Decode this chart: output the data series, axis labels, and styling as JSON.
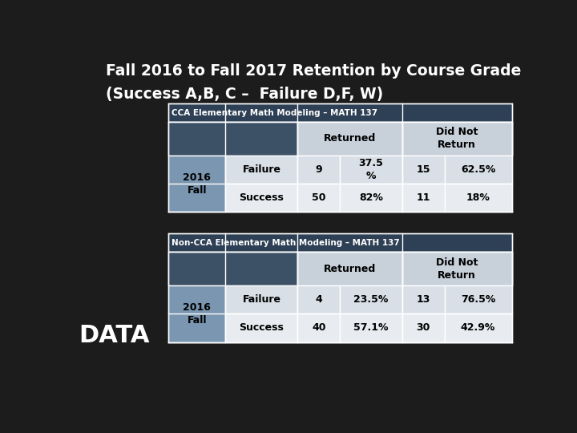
{
  "title_line1": "Fall 2016 to Fall 2017 Retention by Course Grade",
  "title_line2": "(Success A,B, C –  Failure D,F, W)",
  "bg_color": "#1c1c1c",
  "title_color": "#ffffff",
  "data_label": "DATA",
  "table1_title": "CCA Elementary Math Modeling – MATH 137",
  "table2_title": "Non-CCA Elementary Math Modeling – MATH 137",
  "table1": {
    "row_label_outer": "2016\nFall",
    "rows": [
      {
        "label": "Failure",
        "ret_n": "9",
        "ret_pct": "37.5\n%",
        "dnt_n": "15",
        "dnt_pct": "62.5%"
      },
      {
        "label": "Success",
        "ret_n": "50",
        "ret_pct": "82%",
        "dnt_n": "11",
        "dnt_pct": "18%"
      }
    ]
  },
  "table2": {
    "row_label_outer": "2016\nFall",
    "rows": [
      {
        "label": "Failure",
        "ret_n": "4",
        "ret_pct": "23.5%",
        "dnt_n": "13",
        "dnt_pct": "76.5%"
      },
      {
        "label": "Success",
        "ret_n": "40",
        "ret_pct": "57.1%",
        "dnt_n": "30",
        "dnt_pct": "42.9%"
      }
    ]
  },
  "title_bar_bg": "#3d5166",
  "header_row_bg": "#c8d0da",
  "row_bg_failure": "#d8dfe6",
  "row_bg_success": "#e8ecf0",
  "left_col_bg": "#7a96b0",
  "table_title_bg": "#2e4055",
  "border_color": "#ffffff",
  "text_black": "#000000",
  "text_white": "#ffffff"
}
